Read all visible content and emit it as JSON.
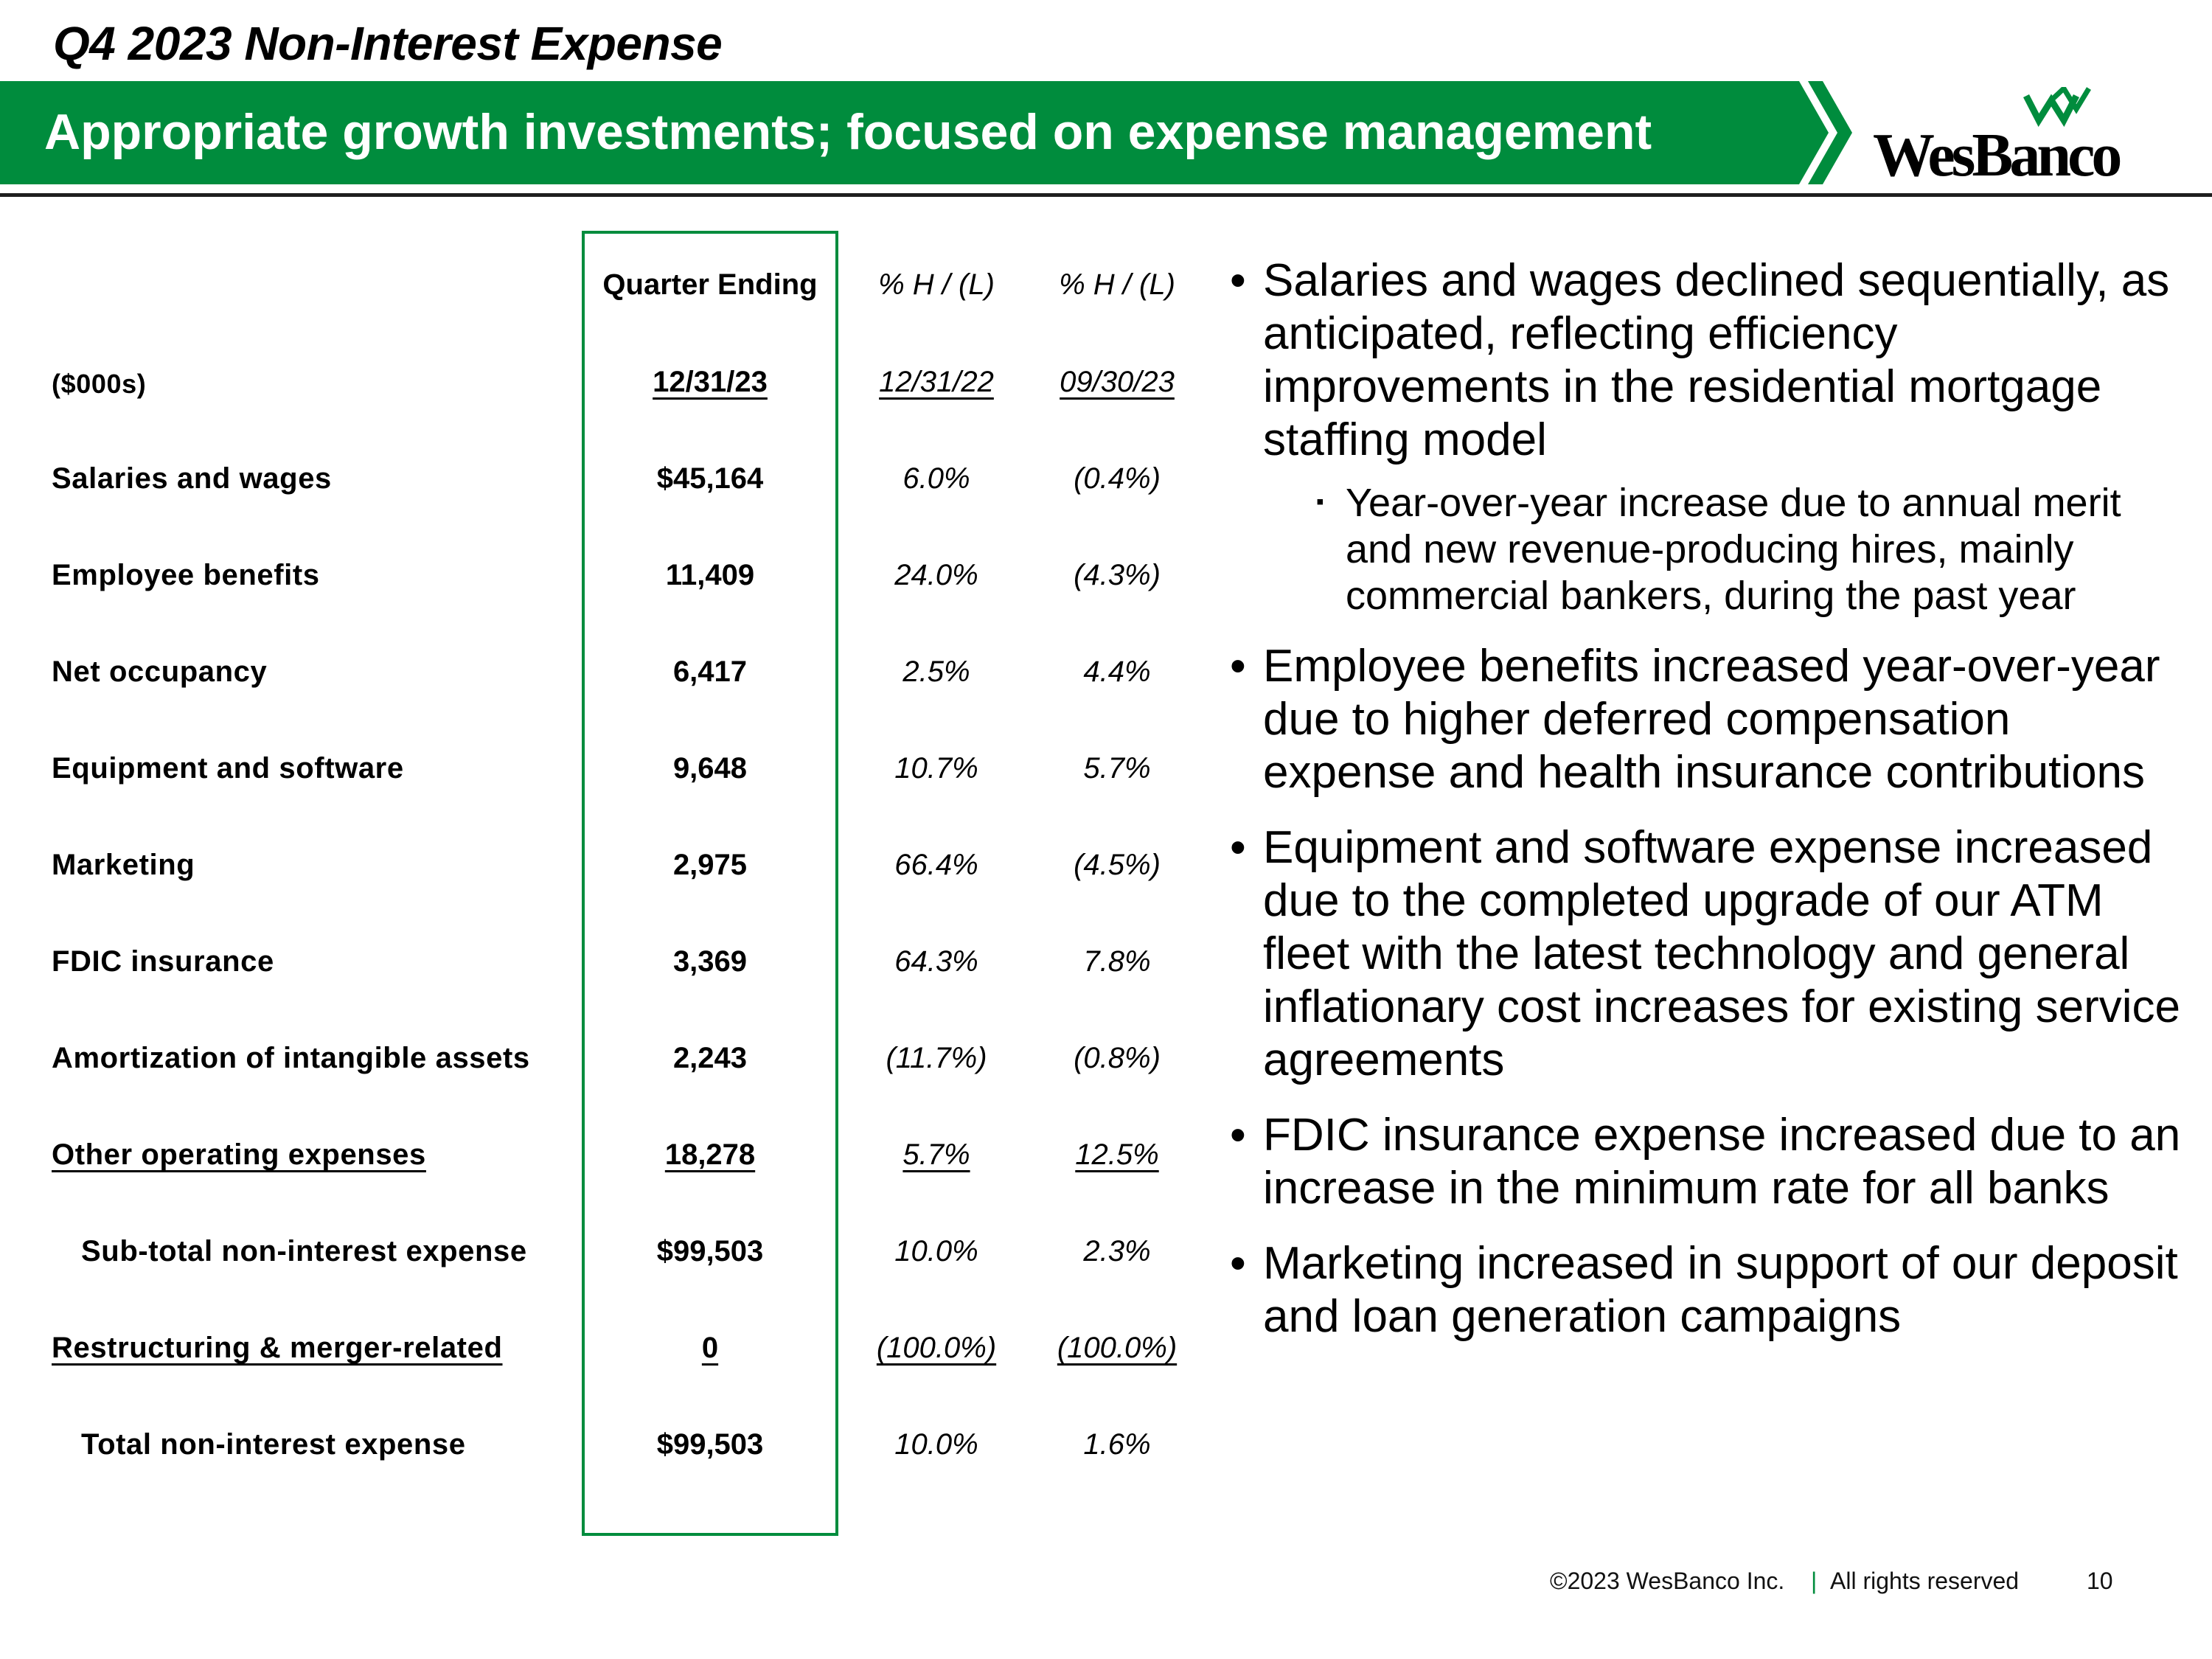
{
  "slide": {
    "title": "Q4 2023 Non-Interest Expense",
    "banner": "Appropriate growth investments; focused on expense management",
    "logo": "WesBanco",
    "brand_green": "#008c3d"
  },
  "table": {
    "headers": {
      "col1": "Quarter Ending",
      "col2": "% H / (L)",
      "col3": "% H / (L)"
    },
    "units_label": "($000s)",
    "dates": {
      "col1": "12/31/23",
      "col2": "12/31/22",
      "col3": "09/30/23"
    },
    "rows": [
      {
        "label": "Salaries and wages",
        "q": "$45,164",
        "yoy": "6.0%",
        "qoq": "(0.4%)"
      },
      {
        "label": "Employee benefits",
        "q": "11,409",
        "yoy": "24.0%",
        "qoq": "(4.3%)"
      },
      {
        "label": "Net occupancy",
        "q": "6,417",
        "yoy": "2.5%",
        "qoq": "4.4%"
      },
      {
        "label": "Equipment and software",
        "q": "9,648",
        "yoy": "10.7%",
        "qoq": "5.7%"
      },
      {
        "label": "Marketing",
        "q": "2,975",
        "yoy": "66.4%",
        "qoq": "(4.5%)"
      },
      {
        "label": "FDIC insurance",
        "q": "3,369",
        "yoy": "64.3%",
        "qoq": "7.8%"
      },
      {
        "label": "Amortization of intangible assets",
        "q": "2,243",
        "yoy": "(11.7%)",
        "qoq": "(0.8%)"
      },
      {
        "label": "Other operating expenses",
        "q": "18,278",
        "yoy": "5.7%",
        "qoq": "12.5%"
      },
      {
        "label": "Sub-total non-interest expense",
        "q": "$99,503",
        "yoy": "10.0%",
        "qoq": "2.3%"
      },
      {
        "label": "Restructuring & merger-related",
        "q": "0",
        "yoy": "(100.0%)",
        "qoq": "(100.0%)"
      },
      {
        "label": "Total non-interest expense",
        "q": "$99,503",
        "yoy": "10.0%",
        "qoq": "1.6%"
      }
    ]
  },
  "bullets": [
    "Salaries and wages declined sequentially, as anticipated, reflecting efficiency improvements in the residential mortgage staffing model",
    "Year-over-year increase due to annual merit and new revenue-producing hires, mainly commercial bankers, during the past year",
    "Employee benefits increased year-over-year due to higher deferred compensation expense and health insurance contributions",
    "Equipment and software expense increased due to the completed upgrade of our ATM fleet with the latest technology and general inflationary cost increases for existing service agreements",
    "FDIC insurance expense increased due to an increase in the minimum rate for all banks",
    "Marketing increased in support of our deposit and loan generation campaigns"
  ],
  "footer": {
    "copyright": "©2023 WesBanco Inc.",
    "separator": "|",
    "rights": "All rights reserved",
    "page": "10"
  }
}
